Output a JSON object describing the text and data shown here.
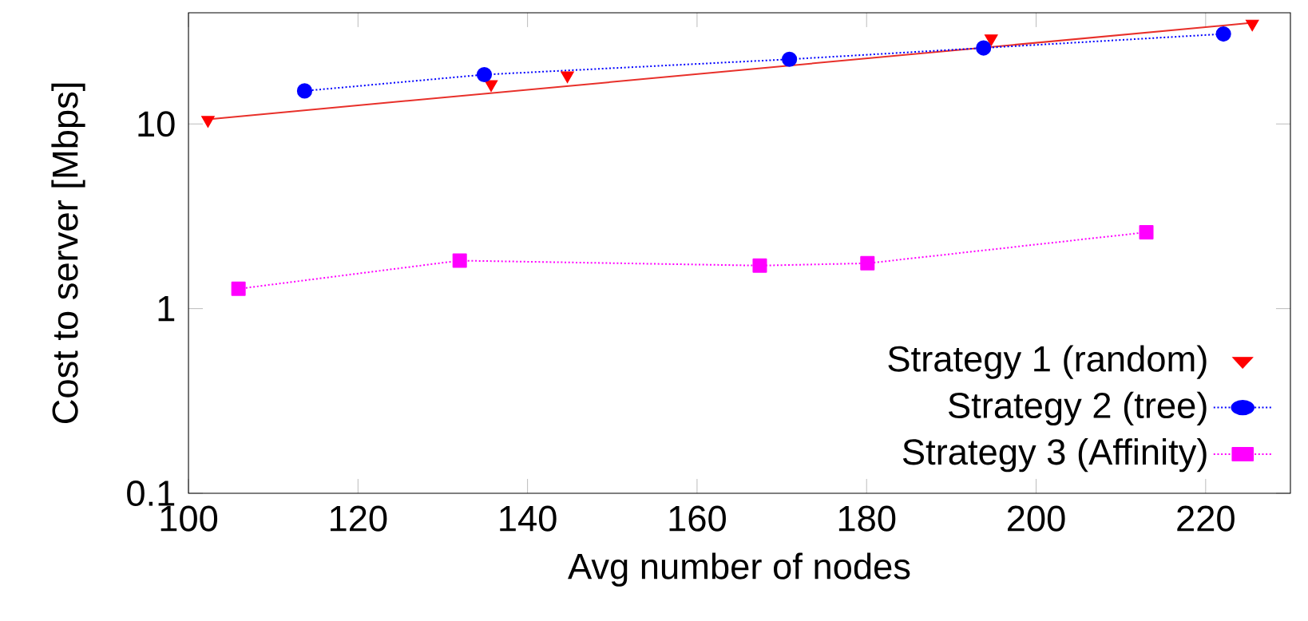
{
  "chart_data": {
    "type": "line",
    "xlabel": "Avg number of nodes",
    "ylabel": "Cost to server [Mbps]",
    "log": "y",
    "xlim": [
      100,
      230
    ],
    "ylim": [
      0.1,
      40
    ],
    "xticks": [
      100,
      120,
      140,
      160,
      180,
      200,
      220
    ],
    "yticks": [
      0.1,
      1,
      10
    ],
    "legend": "bottom right",
    "grid": false,
    "series": [
      {
        "name": "Strategy 1 (random)",
        "type": "scatter",
        "marker": "triangle",
        "color": "#ff0000",
        "x": [
          102.3,
          135.7,
          144.7,
          194.7,
          225.5
        ],
        "values": [
          10.5,
          16.4,
          18.3,
          29.0,
          34.9
        ]
      },
      {
        "marker": "none",
        "line_style": "solid",
        "color": "#e8302a",
        "x": [
          102.3,
          225.5
        ],
        "values": [
          10.6,
          35.3
        ]
      },
      {
        "name": "Strategy 2 (tree)",
        "marker": "circle",
        "line_style": "dotted",
        "color": "#0000ff",
        "x": [
          113.7,
          134.9,
          170.9,
          193.8,
          222.1
        ],
        "values": [
          15.1,
          18.5,
          22.4,
          25.8,
          30.7
        ]
      },
      {
        "name": "Strategy 3 (Affinity)",
        "marker": "square",
        "line_style": "dotted",
        "color": "#ff00ff",
        "x": [
          105.9,
          132.0,
          167.4,
          180.1,
          213.0
        ],
        "values": [
          1.28,
          1.82,
          1.71,
          1.76,
          2.59
        ]
      }
    ]
  }
}
